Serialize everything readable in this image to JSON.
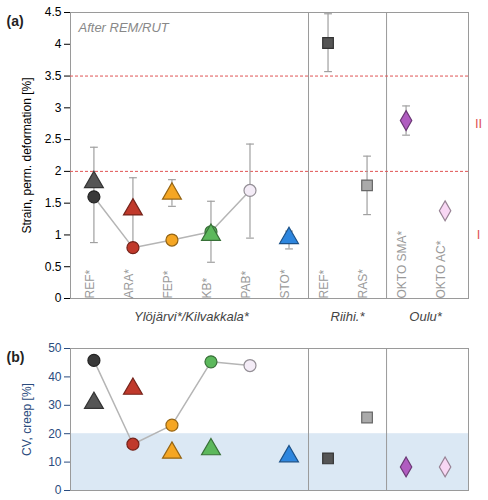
{
  "chart_data": [
    {
      "type": "scatter",
      "panel": "(a)",
      "title": "After REM/RUT",
      "y_label": "Strain, perm. deformation [%]",
      "categories": [
        "REF*",
        "ARA*",
        "FEP*",
        "KB*",
        "PAB*",
        "STO*",
        "REF*",
        "RAS*",
        "OKTO SMA*",
        "OKTO AC*"
      ],
      "groups": [
        {
          "name": "Ylöjärvi*/Kilvakkala*",
          "size": 6
        },
        {
          "name": "Riihi.*",
          "size": 2
        },
        {
          "name": "Oulu*",
          "size": 2
        }
      ],
      "ylim": [
        0,
        4.5
      ],
      "yticks": [
        0,
        0.5,
        1,
        1.5,
        2,
        2.5,
        3,
        3.5,
        4,
        4.5
      ],
      "grid": false,
      "zones": [
        {
          "label": "I",
          "from": 0,
          "to": 2,
          "color": "#e05555"
        },
        {
          "label": "II",
          "from": 2,
          "to": 3.5,
          "color": "#e05555"
        }
      ],
      "series": [
        {
          "marker": "circle",
          "line_style": "solid",
          "color": "#b5b5b5",
          "colors": [
            "#3a3a3a",
            "#c0392b",
            "#f5a623",
            "#5cb85c",
            "#f4ecf7",
            null,
            null,
            null,
            null,
            null
          ],
          "values": [
            1.6,
            0.8,
            0.92,
            1.05,
            1.7,
            null,
            null,
            null,
            null,
            null
          ],
          "error_low": [
            0.88,
            null,
            null,
            null,
            0.95,
            null,
            null,
            null,
            null,
            null
          ],
          "error_high": [
            2.38,
            null,
            null,
            null,
            2.43,
            null,
            null,
            null,
            null,
            null
          ]
        },
        {
          "marker": "triangle",
          "colors": [
            "#555555",
            "#c0392b",
            "#f5a623",
            "#5cb85c",
            null,
            "#2e86de",
            null,
            null,
            null,
            null
          ],
          "values": [
            1.83,
            1.4,
            1.65,
            1.0,
            null,
            0.95,
            null,
            null,
            null,
            null
          ],
          "error_low": [
            null,
            0.88,
            1.45,
            0.57,
            null,
            0.78,
            null,
            null,
            null,
            null
          ],
          "error_high": [
            null,
            1.9,
            1.87,
            1.53,
            null,
            1.06,
            null,
            null,
            null,
            null
          ]
        },
        {
          "marker": "square",
          "colors": [
            null,
            null,
            null,
            null,
            null,
            null,
            "#555555",
            "#aaaaaa",
            null,
            null
          ],
          "values": [
            null,
            null,
            null,
            null,
            null,
            null,
            4.02,
            1.78,
            null,
            null
          ],
          "error_low": [
            null,
            null,
            null,
            null,
            null,
            null,
            3.57,
            1.32,
            null,
            null
          ],
          "error_high": [
            null,
            null,
            null,
            null,
            null,
            null,
            4.48,
            2.24,
            null,
            null
          ]
        },
        {
          "marker": "diamond",
          "colors": [
            null,
            null,
            null,
            null,
            null,
            null,
            null,
            null,
            "#b05cc0",
            "#f8d7f4"
          ],
          "values": [
            null,
            null,
            null,
            null,
            null,
            null,
            null,
            null,
            2.8,
            1.38
          ],
          "error_low": [
            null,
            null,
            null,
            null,
            null,
            null,
            null,
            null,
            2.57,
            null
          ],
          "error_high": [
            null,
            null,
            null,
            null,
            null,
            null,
            null,
            null,
            3.03,
            null
          ]
        }
      ]
    },
    {
      "type": "scatter",
      "panel": "(b)",
      "y_label": "CV, creep [%]",
      "categories": [
        "REF*",
        "ARA*",
        "FEP*",
        "KB*",
        "PAB*",
        "STO*",
        "REF*",
        "RAS*",
        "OKTO SMA*",
        "OKTO AC*"
      ],
      "tick_labels": "y",
      "ylim": [
        0,
        50
      ],
      "yticks": [
        0,
        10,
        20,
        30,
        40,
        50
      ],
      "grid": false,
      "band": {
        "from": 0,
        "to": 20
      },
      "series": [
        {
          "marker": "circle",
          "line_style": "solid",
          "color": "#b5b5b5",
          "colors": [
            "#3a3a3a",
            "#c0392b",
            "#f5a623",
            "#5cb85c",
            "#f4ecf7",
            null,
            null,
            null,
            null,
            null
          ],
          "values": [
            45.8,
            16.3,
            23.0,
            45.3,
            44.0,
            null,
            null,
            null,
            null,
            null
          ]
        },
        {
          "marker": "triangle",
          "colors": [
            "#555555",
            "#c0392b",
            "#f5a623",
            "#5cb85c",
            null,
            "#2e86de",
            null,
            null,
            null,
            null
          ],
          "values": [
            30.8,
            35.8,
            13.3,
            14.5,
            null,
            12.0,
            null,
            null,
            null,
            null
          ]
        },
        {
          "marker": "square",
          "colors": [
            null,
            null,
            null,
            null,
            null,
            null,
            "#555555",
            "#aaaaaa",
            null,
            null
          ],
          "values": [
            null,
            null,
            null,
            null,
            null,
            null,
            11.3,
            25.7,
            null,
            null
          ]
        },
        {
          "marker": "diamond",
          "colors": [
            null,
            null,
            null,
            null,
            null,
            null,
            null,
            null,
            "#b05cc0",
            "#f8d7f4"
          ],
          "values": [
            null,
            null,
            null,
            null,
            null,
            null,
            null,
            null,
            8.3,
            8.3
          ]
        }
      ]
    }
  ]
}
